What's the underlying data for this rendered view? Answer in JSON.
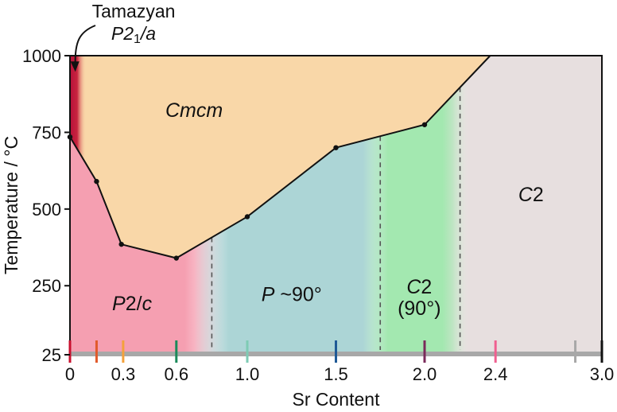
{
  "chart_data": {
    "type": "phase-diagram",
    "title": "",
    "xlabel": "Sr Content",
    "ylabel": "Temperature / °C",
    "xlim": [
      0,
      3.0
    ],
    "ylim": [
      25,
      1000
    ],
    "x_ticks": [
      {
        "value": 0,
        "label": "0"
      },
      {
        "value": 0.3,
        "label": "0.3"
      },
      {
        "value": 0.6,
        "label": "0.6"
      },
      {
        "value": 1.0,
        "label": "1.0"
      },
      {
        "value": 1.5,
        "label": "1.5"
      },
      {
        "value": 2.0,
        "label": "2.0"
      },
      {
        "value": 2.4,
        "label": "2.4"
      },
      {
        "value": 3.0,
        "label": "3.0"
      }
    ],
    "y_ticks": [
      {
        "value": 25,
        "label": "25"
      },
      {
        "value": 250,
        "label": "250"
      },
      {
        "value": 500,
        "label": "500"
      },
      {
        "value": 750,
        "label": "750"
      },
      {
        "value": 1000,
        "label": "1000"
      }
    ],
    "boundary": {
      "x": [
        0,
        0.15,
        0.29,
        0.6,
        1.0,
        1.5,
        2.0,
        2.37
      ],
      "y": [
        735,
        590,
        385,
        340,
        475,
        700,
        775,
        1000
      ]
    },
    "vertical_dividers": [
      0.8,
      1.75,
      2.2
    ],
    "composition_markers": [
      {
        "x": 0,
        "color": "#c8102e"
      },
      {
        "x": 0.15,
        "color": "#e15a2b"
      },
      {
        "x": 0.3,
        "color": "#f4a13b"
      },
      {
        "x": 0.6,
        "color": "#1b8a5a"
      },
      {
        "x": 1.0,
        "color": "#7ecbb4"
      },
      {
        "x": 1.5,
        "color": "#1f5a96"
      },
      {
        "x": 2.0,
        "color": "#7a2a5a"
      },
      {
        "x": 2.4,
        "color": "#f06090"
      },
      {
        "x": 2.85,
        "color": "#a8a8a8"
      },
      {
        "x": 3.0,
        "color": "#111111"
      }
    ],
    "regions": [
      {
        "name": "Cmcm",
        "label_x": 0.7,
        "label_y": 800,
        "color": "#f9d7a8"
      },
      {
        "name": "P2/c",
        "label_x": 0.35,
        "label_y": 170,
        "color": "#f59fb1"
      },
      {
        "name": "P ~90°",
        "label_x": 1.25,
        "label_y": 200,
        "color": "#acd5d6"
      },
      {
        "name": "C2",
        "label_sub": "(90°)",
        "label_x": 1.97,
        "label_y": 225,
        "color": "#a3e8b0"
      },
      {
        "name": "C2",
        "label_x": 2.6,
        "label_y": 525,
        "color": "#e7dfdf"
      },
      {
        "name": "P21/a",
        "color": "#b8123a"
      }
    ],
    "annotation": {
      "line1": "Tamazyan",
      "line2_main": "P2",
      "line2_sub": "1",
      "line2_end": "/a",
      "points_to": {
        "x": 0.03,
        "y": 950
      }
    }
  }
}
